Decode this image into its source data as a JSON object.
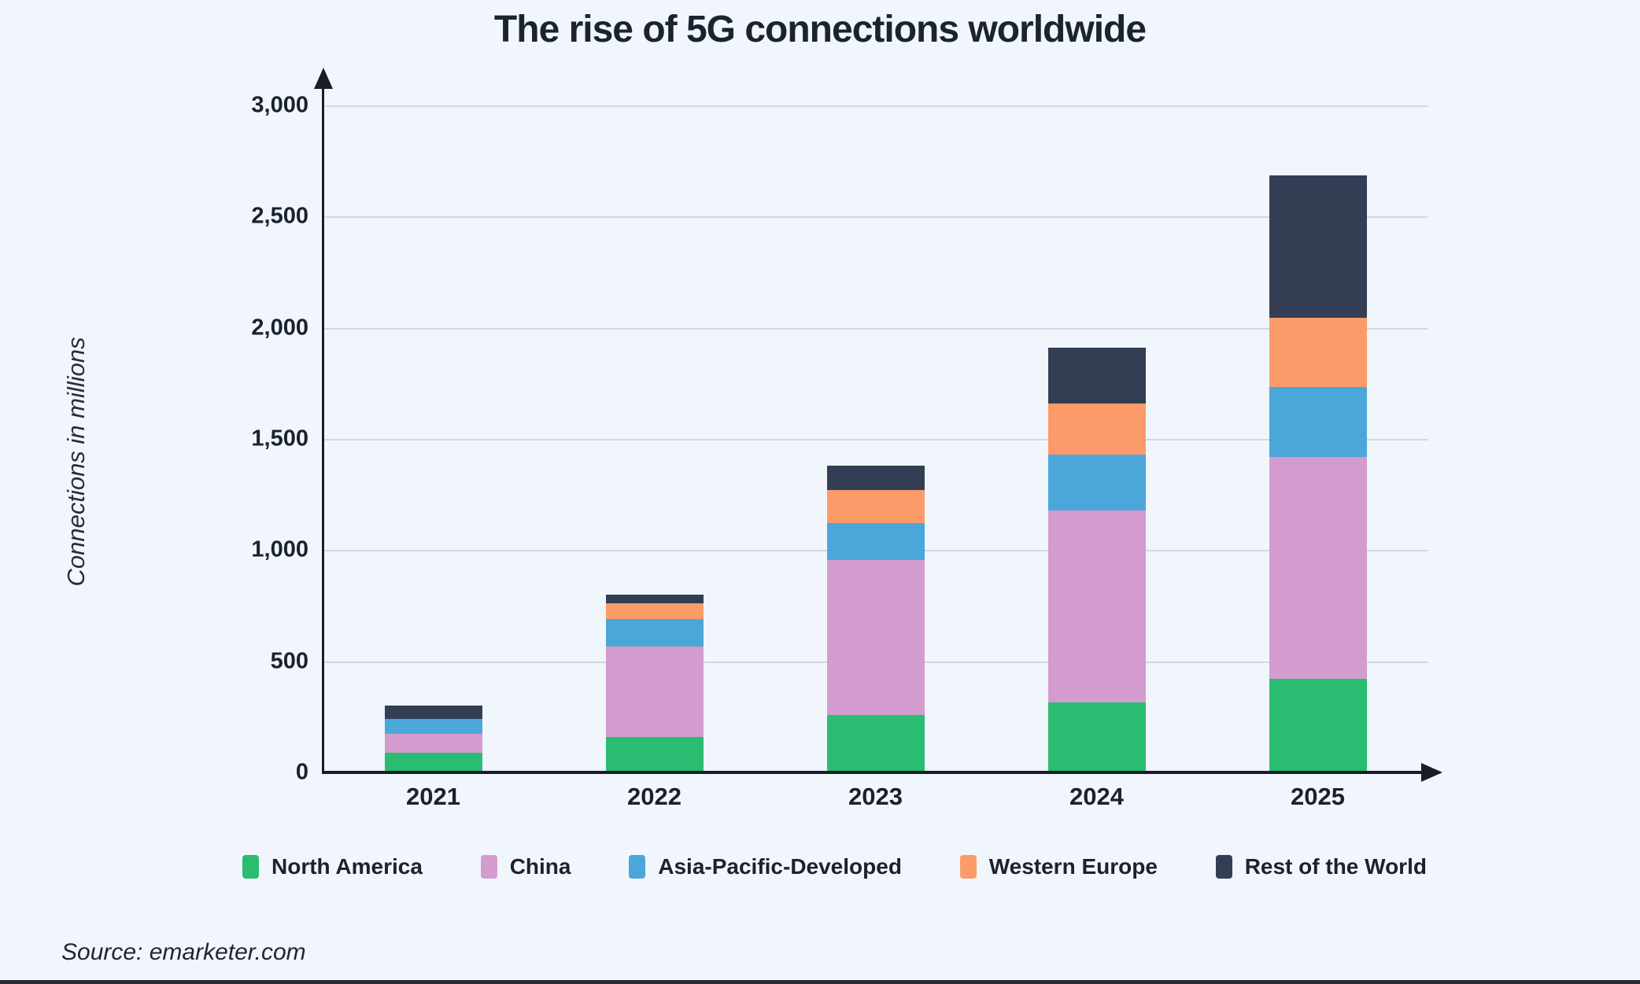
{
  "page": {
    "background": "#f0f6fb",
    "bottom_strip_color": "#262b34"
  },
  "source": {
    "text": "Source: emarketer.com"
  },
  "chart_data": {
    "type": "bar",
    "stacked": true,
    "title": "The rise of 5G connections worldwide",
    "ylabel": "Connections in millions",
    "xlabel": "",
    "categories": [
      "2021",
      "2022",
      "2023",
      "2024",
      "2025"
    ],
    "series": [
      {
        "name": "North America",
        "color": "#2abd72",
        "values": [
          90,
          160,
          260,
          315,
          420
        ]
      },
      {
        "name": "China",
        "color": "#d49cce",
        "values": [
          85,
          405,
          695,
          865,
          1000
        ]
      },
      {
        "name": "Asia-Pacific-Developed",
        "color": "#4ba7d9",
        "values": [
          65,
          125,
          165,
          250,
          315
        ]
      },
      {
        "name": "Western Europe",
        "color": "#fc9b6a",
        "values": [
          0,
          70,
          150,
          230,
          310
        ]
      },
      {
        "name": "Rest of the World",
        "color": "#333e54",
        "values": [
          60,
          40,
          110,
          250,
          640
        ]
      }
    ],
    "ylim": [
      0,
      3000
    ],
    "yticks": [
      {
        "value": 0,
        "label": "0"
      },
      {
        "value": 500,
        "label": "500"
      },
      {
        "value": 1000,
        "label": "1,000"
      },
      {
        "value": 1500,
        "label": "1,500"
      },
      {
        "value": 2000,
        "label": "2,000"
      },
      {
        "value": 2500,
        "label": "2,500"
      },
      {
        "value": 3000,
        "label": "3,000"
      }
    ],
    "grid": true,
    "legend_position": "bottom",
    "axis_color": "#191d27",
    "gridline_color": "#d4d8dd",
    "text_color": "#1b212e"
  }
}
